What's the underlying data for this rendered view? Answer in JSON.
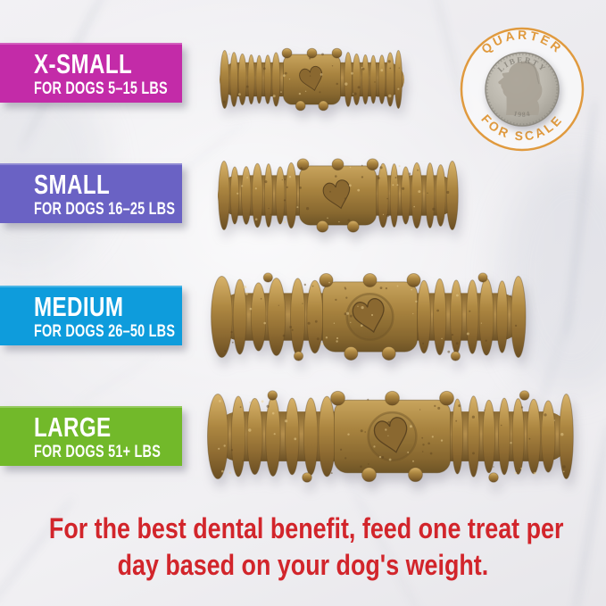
{
  "rows": [
    {
      "label": "X-SMALL",
      "sub": "FOR DOGS 5–15 LBS",
      "color": "#c32ba8"
    },
    {
      "label": "SMALL",
      "sub": "FOR DOGS 16–25 LBS",
      "color": "#6a62c4"
    },
    {
      "label": "MEDIUM",
      "sub": "FOR DOGS 26–50 LBS",
      "color": "#0e9cdc"
    },
    {
      "label": "LARGE",
      "sub": "FOR DOGS 51+ LBS",
      "color": "#72b92a"
    }
  ],
  "scale_badge": {
    "top_text": "QUARTER",
    "bottom_text": "FOR SCALE",
    "accent_color": "#e09a3e",
    "coin_top_text": "LIBERTY",
    "coin_date": "1984"
  },
  "footer": {
    "line1": "For the best dental benefit, feed one treat per",
    "line2": "day based on your dog's weight.",
    "color": "#d2252b"
  },
  "treat_palette": {
    "highlight": "#d7b269",
    "mid": "#ad8741",
    "shadow": "#6b4f23",
    "speckle_dark": "#5f4620",
    "speckle_light": "#ecd193"
  }
}
